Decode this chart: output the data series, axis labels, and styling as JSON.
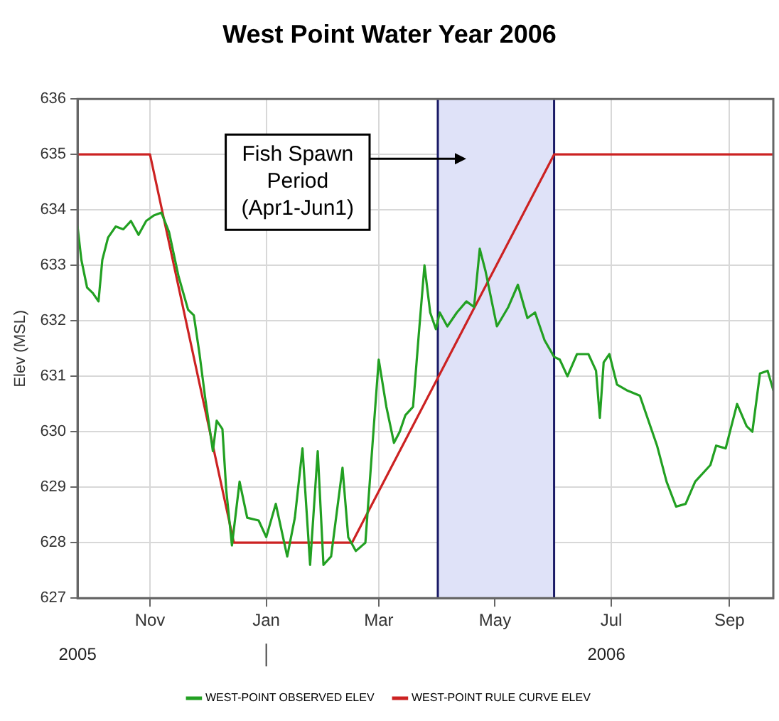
{
  "chart_data": {
    "type": "line",
    "title": "West Point Water Year 2006",
    "ylabel": "Elev (MSL)",
    "xlim": [
      "2005-09-24",
      "2006-09-24"
    ],
    "xticks": [
      {
        "value": "2005-11-01",
        "label": "Nov"
      },
      {
        "value": "2006-01-01",
        "label": "Jan"
      },
      {
        "value": "2006-03-01",
        "label": "Mar"
      },
      {
        "value": "2006-05-01",
        "label": "May"
      },
      {
        "value": "2006-07-01",
        "label": "Jul"
      },
      {
        "value": "2006-09-01",
        "label": "Sep"
      }
    ],
    "ylim": [
      627,
      636
    ],
    "yticks": [
      627,
      628,
      629,
      630,
      631,
      632,
      633,
      634,
      635,
      636
    ],
    "grid": true,
    "legend": "bottom",
    "marker": "none",
    "line_style": "solid",
    "bands": [
      {
        "axis": "x",
        "from": "2006-04-01",
        "to": "2006-06-01",
        "label": "Fish Spawn Period (Apr1-Jun1)",
        "color": "#dfe2f8"
      }
    ],
    "ref_lines": [
      {
        "axis": "x",
        "value": "2006-04-01",
        "color": "#1a1a66",
        "line_style": "solid"
      },
      {
        "axis": "x",
        "value": "2006-06-01",
        "color": "#1a1a66",
        "line_style": "solid"
      }
    ],
    "annotations": [
      "2005",
      "2006"
    ],
    "series": [
      {
        "name": "WEST-POINT OBSERVED ELEV",
        "color": "#22a022",
        "x": [
          "2005-09-24",
          "2005-09-26",
          "2005-09-29",
          "2005-10-02",
          "2005-10-05",
          "2005-10-07",
          "2005-10-10",
          "2005-10-14",
          "2005-10-18",
          "2005-10-22",
          "2005-10-26",
          "2005-10-30",
          "2005-11-03",
          "2005-11-07",
          "2005-11-11",
          "2005-11-16",
          "2005-11-21",
          "2005-11-24",
          "2005-11-27",
          "2005-11-30",
          "2005-12-04",
          "2005-12-06",
          "2005-12-09",
          "2005-12-11",
          "2005-12-14",
          "2005-12-18",
          "2005-12-22",
          "2005-12-28",
          "2006-01-01",
          "2006-01-06",
          "2006-01-12",
          "2006-01-16",
          "2006-01-20",
          "2006-01-24",
          "2006-01-28",
          "2006-01-31",
          "2006-02-04",
          "2006-02-10",
          "2006-02-13",
          "2006-02-17",
          "2006-02-22",
          "2006-02-26",
          "2006-03-01",
          "2006-03-05",
          "2006-03-09",
          "2006-03-12",
          "2006-03-15",
          "2006-03-19",
          "2006-03-22",
          "2006-03-25",
          "2006-03-28",
          "2006-03-31",
          "2006-04-02",
          "2006-04-06",
          "2006-04-11",
          "2006-04-16",
          "2006-04-20",
          "2006-04-23",
          "2006-04-26",
          "2006-05-02",
          "2006-05-08",
          "2006-05-13",
          "2006-05-18",
          "2006-05-22",
          "2006-05-27",
          "2006-06-01",
          "2006-06-04",
          "2006-06-08",
          "2006-06-13",
          "2006-06-19",
          "2006-06-23",
          "2006-06-25",
          "2006-06-27",
          "2006-06-30",
          "2006-07-04",
          "2006-07-09",
          "2006-07-16",
          "2006-07-19",
          "2006-07-25",
          "2006-07-30",
          "2006-08-04",
          "2006-08-09",
          "2006-08-14",
          "2006-08-22",
          "2006-08-25",
          "2006-08-30",
          "2006-09-05",
          "2006-09-10",
          "2006-09-13",
          "2006-09-17",
          "2006-09-21",
          "2006-09-24"
        ],
        "values": [
          633.7,
          633.1,
          632.6,
          632.5,
          632.35,
          633.1,
          633.5,
          633.7,
          633.65,
          633.8,
          633.55,
          633.8,
          633.9,
          633.95,
          633.6,
          632.8,
          632.2,
          632.1,
          631.4,
          630.6,
          629.65,
          630.2,
          630.05,
          628.95,
          627.95,
          629.1,
          628.45,
          628.4,
          628.1,
          628.7,
          627.75,
          628.45,
          629.7,
          627.6,
          629.65,
          627.6,
          627.75,
          629.35,
          628.1,
          627.85,
          628.0,
          629.9,
          631.3,
          630.45,
          629.8,
          630.0,
          630.3,
          630.45,
          631.75,
          633.0,
          632.15,
          631.85,
          632.15,
          631.9,
          632.15,
          632.35,
          632.25,
          633.3,
          632.9,
          631.9,
          632.25,
          632.65,
          632.05,
          632.15,
          631.65,
          631.35,
          631.3,
          631.0,
          631.4,
          631.4,
          631.1,
          630.25,
          631.25,
          631.4,
          630.85,
          630.75,
          630.65,
          630.35,
          629.75,
          629.1,
          628.65,
          628.7,
          629.1,
          629.4,
          629.75,
          629.7,
          630.5,
          630.1,
          630.0,
          631.05,
          631.1,
          630.75
        ]
      },
      {
        "name": "WEST-POINT RULE CURVE ELEV",
        "color": "#cc2222",
        "x": [
          "2005-09-24",
          "2005-11-01",
          "2005-12-15",
          "2006-02-15",
          "2006-06-01",
          "2006-09-24"
        ],
        "values": [
          635,
          635,
          628,
          628,
          635,
          635
        ]
      }
    ]
  }
}
